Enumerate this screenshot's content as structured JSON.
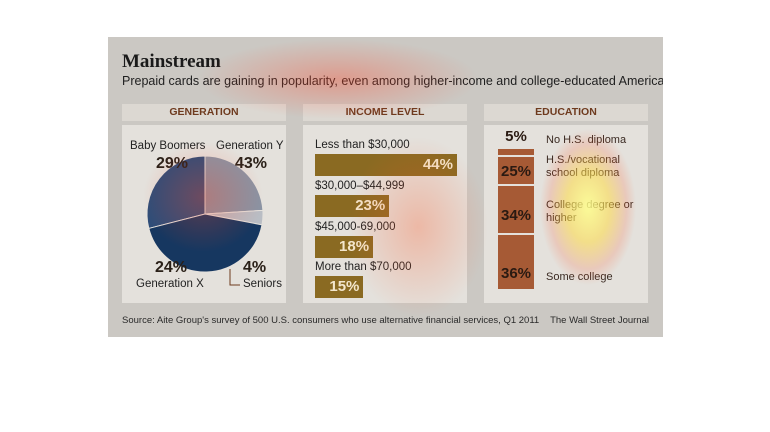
{
  "title": "Mainstream",
  "subtitle": "Prepaid cards are gaining in popularity, even among higher-income and college-educated Americans",
  "source": "Source: Aite Group's survey of 500 U.S. consumers who use alternative financial services, Q1 2011",
  "credit": "The Wall Street Journal",
  "colors": {
    "pie": [
      "#2f4d78",
      "#8a93a3",
      "#b9bdc4",
      "#163760"
    ],
    "income_bar": "#8a6a22",
    "education_bar": "#a65a35",
    "header_text": "#6e3a1e"
  },
  "chart_data": [
    {
      "type": "pie",
      "title": "GENERATION",
      "slices": [
        {
          "label": "Baby Boomers",
          "value": 29,
          "value_label": "29%"
        },
        {
          "label": "Generation X",
          "value": 24,
          "value_label": "24%"
        },
        {
          "label": "Seniors",
          "value": 4,
          "value_label": "4%"
        },
        {
          "label": "Generation Y",
          "value": 43,
          "value_label": "43%"
        }
      ]
    },
    {
      "type": "bar",
      "title": "INCOME LEVEL",
      "orientation": "horizontal",
      "categories": [
        "Less than $30,000",
        "$30,000–$44,999",
        "$45,000-69,000",
        "More than $70,000"
      ],
      "values": [
        44,
        23,
        18,
        15
      ],
      "value_labels": [
        "44%",
        "23%",
        "18%",
        "15%"
      ]
    },
    {
      "type": "bar",
      "title": "EDUCATION",
      "orientation": "stacked-vertical",
      "categories": [
        "No H.S. diploma",
        "H.S./vocational school diploma",
        "College degree or higher",
        "Some college"
      ],
      "values": [
        5,
        25,
        34,
        36
      ],
      "value_labels": [
        "5%",
        "25%",
        "34%",
        "36%"
      ]
    }
  ]
}
